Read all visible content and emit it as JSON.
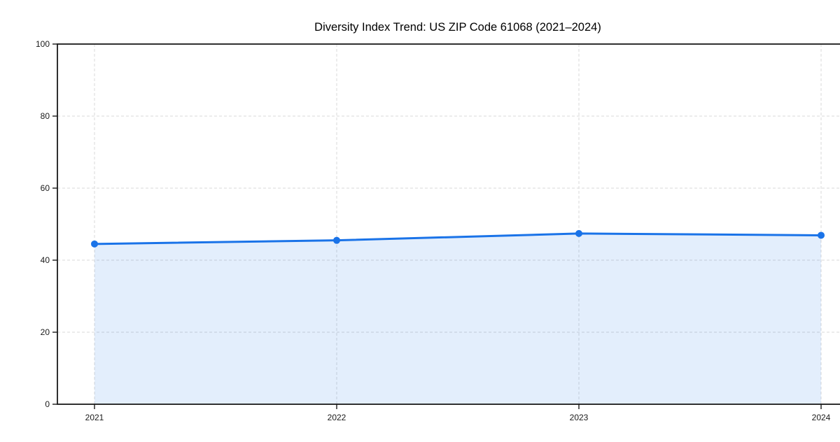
{
  "page": {
    "background": "#ffffff"
  },
  "chart_data": {
    "type": "area",
    "title": "Diversity Index Trend: US ZIP Code 61068 (2021–2024)",
    "series_name": "Diversity Index",
    "categories": [
      "2021",
      "2022",
      "2023",
      "2024"
    ],
    "values": [
      44.5,
      45.5,
      47.4,
      46.9
    ],
    "xlabel": "",
    "ylabel": "",
    "ylim": [
      0,
      100
    ],
    "yticks": [
      0,
      20,
      40,
      60,
      80,
      100
    ],
    "grid": "dashed-both-axes",
    "legend": "none",
    "marker": "circle",
    "colors": {
      "line": "#1a73e8",
      "marker": "#1a73e8",
      "area_fill": "rgba(26,115,232,0.12)",
      "grid": "#e0e0e0",
      "axis": "#1a1a1a",
      "tick_label": "#1a1a1a",
      "title": "#000000",
      "background": "#ffffff"
    }
  }
}
